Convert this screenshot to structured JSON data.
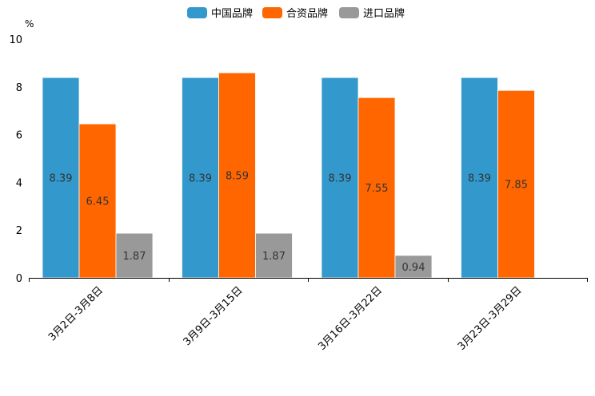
{
  "chart_data": {
    "type": "bar",
    "title": "",
    "ylabel": "%",
    "xlabel": "",
    "ylim": [
      0,
      10
    ],
    "yticks": [
      0,
      2,
      4,
      6,
      8,
      10
    ],
    "categories": [
      "3月2日-3月8日",
      "3月9日-3月15日",
      "3月16日-3月22日",
      "3月23日-3月29日"
    ],
    "series": [
      {
        "name": "中国品牌",
        "color": "#3399cc",
        "values": [
          8.39,
          8.39,
          8.39,
          8.39
        ],
        "labels": [
          "8.39",
          "8.39",
          "8.39",
          "8.39"
        ]
      },
      {
        "name": "合资品牌",
        "color": "#ff6600",
        "values": [
          6.45,
          8.59,
          7.55,
          7.85
        ],
        "labels": [
          "6.45",
          "8.59",
          "7.55",
          "7.85"
        ]
      },
      {
        "name": "进口品牌",
        "color": "#999999",
        "values": [
          1.87,
          1.87,
          0.94,
          null
        ],
        "labels": [
          "1.87",
          "1.87",
          "0.94",
          ""
        ]
      }
    ],
    "legend_position": "top-center"
  }
}
